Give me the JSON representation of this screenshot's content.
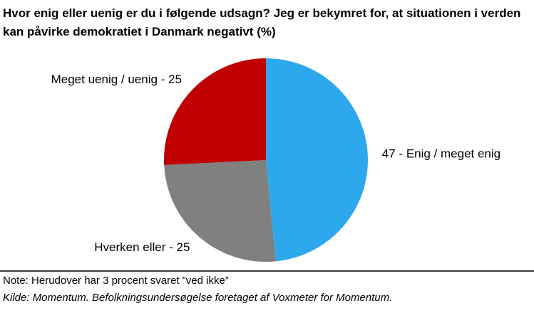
{
  "chart_data": {
    "type": "pie",
    "title": "Hvor enig eller uenig er du i følgende udsagn? Jeg er bekymret for, at situationen i verden kan påvirke demokratiet i Danmark negativt (%)",
    "values": [
      47,
      25,
      25
    ],
    "value_labels": [
      "47 - Enig / meget enig",
      "Hverken eller - 25",
      "Meget uenig / uenig - 25"
    ],
    "colors": [
      "#2ea8ec",
      "#808080",
      "#c00000"
    ],
    "note": "Note: Herudover har 3 procent svaret ”ved ikke”",
    "source": "Kilde: Momentum. Befolkningsundersøgelse foretaget af Voxmeter for Momentum."
  }
}
